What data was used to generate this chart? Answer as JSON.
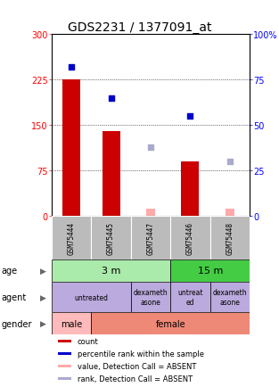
{
  "title": "GDS2231 / 1377091_at",
  "samples": [
    "GSM75444",
    "GSM75445",
    "GSM75447",
    "GSM75446",
    "GSM75448"
  ],
  "count_values": [
    225,
    140,
    0,
    90,
    0
  ],
  "count_absent": [
    0,
    0,
    12,
    0,
    12
  ],
  "percentile_values": [
    82,
    65,
    0,
    55,
    0
  ],
  "percentile_absent": [
    0,
    0,
    38,
    0,
    30
  ],
  "ylim_left": [
    0,
    300
  ],
  "ylim_right": [
    0,
    100
  ],
  "yticks_left": [
    0,
    75,
    150,
    225,
    300
  ],
  "yticks_right": [
    0,
    25,
    50,
    75,
    100
  ],
  "ytick_labels_left": [
    "0",
    "75",
    "150",
    "225",
    "300"
  ],
  "ytick_labels_right": [
    "0",
    "25",
    "50",
    "75",
    "100%"
  ],
  "bar_color": "#cc0000",
  "bar_absent_color": "#ffaaaa",
  "dot_color": "#0000cc",
  "dot_absent_color": "#aaaacc",
  "age_color_3m": "#aaeaaa",
  "age_color_15m": "#44cc44",
  "agent_color": "#bbaadd",
  "gender_male_color": "#ffbbbb",
  "gender_female_color": "#ee8877",
  "sample_bg_color": "#bbbbbb",
  "title_fontsize": 10,
  "tick_fontsize": 7,
  "legend_items": [
    {
      "color": "#cc0000",
      "label": "count"
    },
    {
      "color": "#0000cc",
      "label": "percentile rank within the sample"
    },
    {
      "color": "#ffaaaa",
      "label": "value, Detection Call = ABSENT"
    },
    {
      "color": "#aaaacc",
      "label": "rank, Detection Call = ABSENT"
    }
  ]
}
